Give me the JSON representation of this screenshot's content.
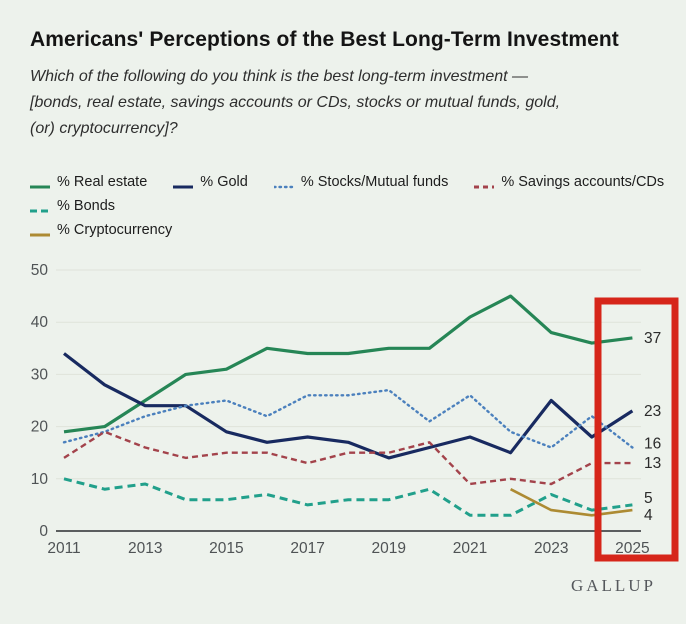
{
  "header": {
    "title": "Americans' Perceptions of the Best Long-Term Investment",
    "subtitle_lines": [
      "Which of the following do you think is the best long-term investment —",
      "[bonds, real estate, savings accounts or CDs, stocks or mutual funds, gold,",
      "(or) cryptocurrency]?"
    ]
  },
  "footer": {
    "logo": "GALLUP"
  },
  "colors": {
    "background": "#edf2ec",
    "grid": "#dfe3da",
    "axis": "#5b5e5f",
    "tick_text": "#4f5355",
    "end_label_text": "#2b2b2b",
    "highlight_box": "#d6261a"
  },
  "chart_data": {
    "type": "line",
    "x": [
      2011,
      2012,
      2013,
      2014,
      2015,
      2016,
      2017,
      2018,
      2019,
      2020,
      2021,
      2022,
      2023,
      2024,
      2025
    ],
    "x_tick_labels": [
      "2011",
      "2013",
      "2015",
      "2017",
      "2019",
      "2021",
      "2023",
      "2025"
    ],
    "y_ticks": [
      0,
      10,
      20,
      30,
      40,
      50
    ],
    "ylim": [
      0,
      50
    ],
    "grid": true,
    "legend_position": "top",
    "highlighted_year": 2025,
    "series": [
      {
        "name": "% Real estate",
        "color": "#268656",
        "dash": "solid",
        "end_label": "37",
        "values": [
          19,
          20,
          25,
          30,
          31,
          35,
          34,
          34,
          35,
          35,
          41,
          45,
          38,
          36,
          37
        ]
      },
      {
        "name": "% Gold",
        "color": "#182a60",
        "dash": "solid",
        "end_label": "23",
        "values": [
          34,
          28,
          24,
          24,
          19,
          17,
          18,
          17,
          14,
          16,
          18,
          15,
          25,
          18,
          23
        ]
      },
      {
        "name": "% Stocks/Mutual funds",
        "color": "#4b80bd",
        "dash": "dotted",
        "end_label": "16",
        "values": [
          17,
          19,
          22,
          24,
          25,
          22,
          26,
          26,
          27,
          21,
          26,
          19,
          16,
          22,
          16
        ]
      },
      {
        "name": "% Savings accounts/CDs",
        "color": "#a3434b",
        "dash": "dashed",
        "end_label": "13",
        "values": [
          14,
          19,
          16,
          14,
          15,
          15,
          13,
          15,
          15,
          17,
          9,
          10,
          9,
          13,
          13
        ]
      },
      {
        "name": "% Bonds",
        "color": "#21a08b",
        "dash": "dashed-long",
        "end_label": "5",
        "values": [
          10,
          8,
          9,
          6,
          6,
          7,
          5,
          6,
          6,
          8,
          3,
          3,
          7,
          4,
          5
        ]
      },
      {
        "name": "% Cryptocurrency",
        "color": "#ad8b33",
        "dash": "solid",
        "end_label": "4",
        "values": [
          null,
          null,
          null,
          null,
          null,
          null,
          null,
          null,
          null,
          null,
          null,
          8,
          4,
          3,
          4
        ]
      }
    ]
  }
}
